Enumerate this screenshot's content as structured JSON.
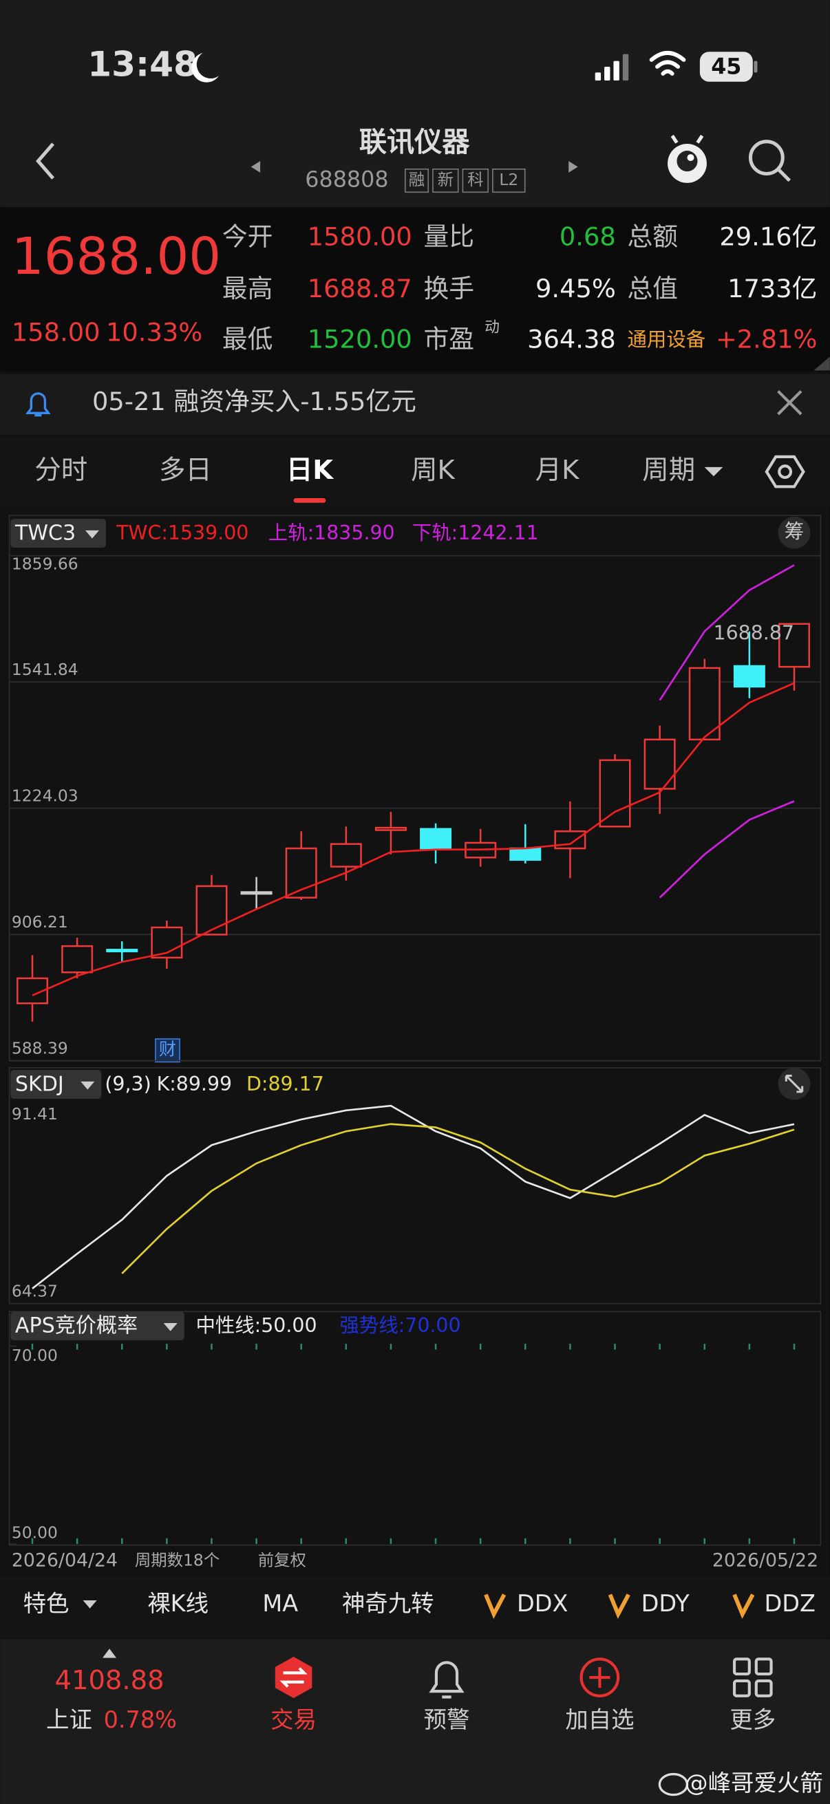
{
  "status_bar": {
    "time": "13:48",
    "battery": "45"
  },
  "header": {
    "title": "联讯仪器",
    "code": "688808",
    "badges": [
      "融",
      "新",
      "科",
      "L2"
    ]
  },
  "quote": {
    "price": "1688.00",
    "change": "158.00",
    "change_pct": "10.33%",
    "stats": [
      {
        "label": "今开",
        "value": "1580.00"
      },
      {
        "label": "量比",
        "value": "0.68"
      },
      {
        "label": "总额",
        "value": "29.16亿"
      },
      {
        "label": "最高",
        "value": "1688.87"
      },
      {
        "label": "换手",
        "value": "9.45%"
      },
      {
        "label": "总值",
        "value": "1733亿"
      },
      {
        "label": "最低",
        "value": "1520.00"
      },
      {
        "label": "市盈",
        "value": "364.38"
      }
    ],
    "pe_note": "动",
    "sector": "通用设备",
    "sector_change": "+2.81%"
  },
  "notice": "05-21 融资净买入-1.55亿元",
  "tabs": [
    "分时",
    "多日",
    "日K",
    "周K",
    "月K",
    "周期"
  ],
  "chart_controls": {
    "chip": "筹",
    "event_marker": "财",
    "period_count": "周期数18个",
    "adjust": "前复权"
  },
  "chart_data": [
    {
      "type": "candlestick",
      "indicator": "TWC3",
      "categories": [
        "2026/04/24",
        null,
        null,
        null,
        null,
        null,
        null,
        null,
        null,
        null,
        null,
        null,
        null,
        null,
        null,
        null,
        null,
        "2026/05/22"
      ],
      "open": [
        733,
        811,
        868,
        848,
        906,
        1013,
        999,
        1077,
        1169,
        1172,
        1100,
        1123,
        1123,
        1178,
        1273,
        1397,
        1582,
        1580
      ],
      "high": [
        854,
        898,
        889,
        941,
        1056,
        1051,
        1166,
        1178,
        1215,
        1186,
        1172,
        1184,
        1241,
        1360,
        1432,
        1600,
        1669,
        1688.87
      ],
      "low": [
        687,
        796,
        837,
        820,
        906,
        970,
        993,
        1042,
        1108,
        1085,
        1077,
        1085,
        1048,
        1178,
        1210,
        1397,
        1501,
        1520
      ],
      "close": [
        796,
        877,
        865,
        924,
        1028,
        1013,
        1123,
        1134,
        1175,
        1123,
        1137,
        1094,
        1166,
        1345,
        1397,
        1577,
        1530,
        1688
      ],
      "up_color": "#f03a3a",
      "down_color": "#40f0f8",
      "flat_color": "#cccccc",
      "series": [
        {
          "name": "TWC:1539.00",
          "color": "#f02020",
          "values": [
            753,
            802,
            837,
            860,
            918,
            970,
            1019,
            1062,
            1114,
            1120,
            1120,
            1123,
            1134,
            1215,
            1264,
            1403,
            1490,
            1539
          ]
        },
        {
          "name": "上轨:1835.90",
          "color": "#d020e0",
          "values": [
            null,
            null,
            null,
            null,
            null,
            null,
            null,
            null,
            null,
            null,
            null,
            null,
            null,
            null,
            1496,
            1669,
            1773,
            1835.9
          ]
        },
        {
          "name": "下轨:1242.11",
          "color": "#d020e0",
          "values": [
            null,
            null,
            null,
            null,
            null,
            null,
            null,
            null,
            null,
            null,
            null,
            null,
            null,
            null,
            999,
            1108,
            1195,
            1242.11
          ]
        }
      ],
      "max_label": "1688.87",
      "ylim": [
        588.39,
        1859.66
      ],
      "yticks": [
        1859.66,
        1541.84,
        1224.03,
        906.21,
        588.39
      ],
      "grid": true
    },
    {
      "type": "line",
      "indicator": "SKDJ",
      "params": "(9,3)",
      "series": [
        {
          "name": "K:89.99",
          "color": "#e8e8e8",
          "values": [
            64.9,
            70.2,
            75.4,
            82.1,
            86.8,
            88.9,
            90.7,
            92.1,
            92.8,
            88.9,
            86.3,
            81.2,
            78.7,
            82.8,
            87.0,
            91.4,
            88.6,
            89.99
          ]
        },
        {
          "name": "D:89.17",
          "color": "#e0d030",
          "values": [
            null,
            null,
            67.2,
            74.0,
            79.8,
            84.0,
            86.8,
            88.9,
            90.0,
            89.5,
            87.2,
            83.2,
            80.0,
            78.9,
            81.0,
            85.2,
            87.0,
            89.17
          ]
        }
      ],
      "ylim": [
        64.37,
        91.41
      ],
      "yticks": [
        91.41,
        64.37
      ]
    },
    {
      "type": "line",
      "indicator": "APS竞价概率",
      "reference_lines": [
        {
          "label": "中性线:50.00",
          "color": "#e8e8e8"
        },
        {
          "label": "强势线:70.00",
          "color": "#2030d8"
        }
      ],
      "ylim": [
        50,
        70
      ],
      "yticks": [
        {
          "value": 70,
          "label": "70.00"
        },
        {
          "value": 50,
          "label": "50.00"
        }
      ]
    }
  ],
  "toolbar": [
    "特色",
    "裸K线",
    "MA",
    "神奇九转",
    "DDX",
    "DDY",
    "DDZ"
  ],
  "bottom_nav": {
    "index_value": "4108.88",
    "index_name": "上证",
    "index_change": "0.78%",
    "items": [
      "交易",
      "预警",
      "加自选",
      "更多"
    ]
  },
  "watermark": "@峰哥爱火箭"
}
